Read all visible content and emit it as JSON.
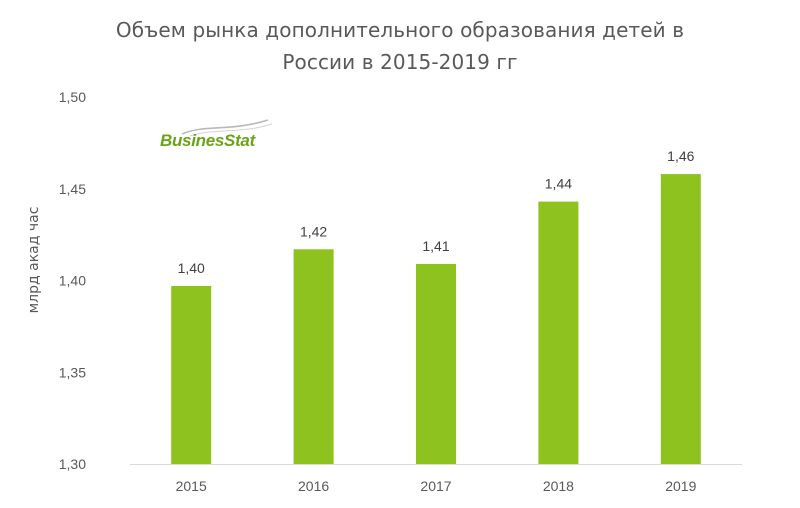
{
  "chart_data": {
    "type": "bar",
    "title_lines": [
      "Объем рынка дополнительного образования детей в",
      "России в 2015-2019 гг"
    ],
    "ylabel": "млрд акад час",
    "xlabel": "",
    "categories": [
      "2015",
      "2016",
      "2017",
      "2018",
      "2019"
    ],
    "values": [
      1.397,
      1.417,
      1.409,
      1.443,
      1.458
    ],
    "data_labels": [
      "1,40",
      "1,42",
      "1,41",
      "1,44",
      "1,46"
    ],
    "ylim": [
      1.3,
      1.5
    ],
    "yticks": [
      1.3,
      1.35,
      1.4,
      1.45,
      1.5
    ],
    "ytick_labels": [
      "1,30",
      "1,35",
      "1,40",
      "1,45",
      "1,50"
    ],
    "grid": false,
    "bar_color": "#8dc21f"
  },
  "logo": {
    "text": "BusinesStat"
  }
}
